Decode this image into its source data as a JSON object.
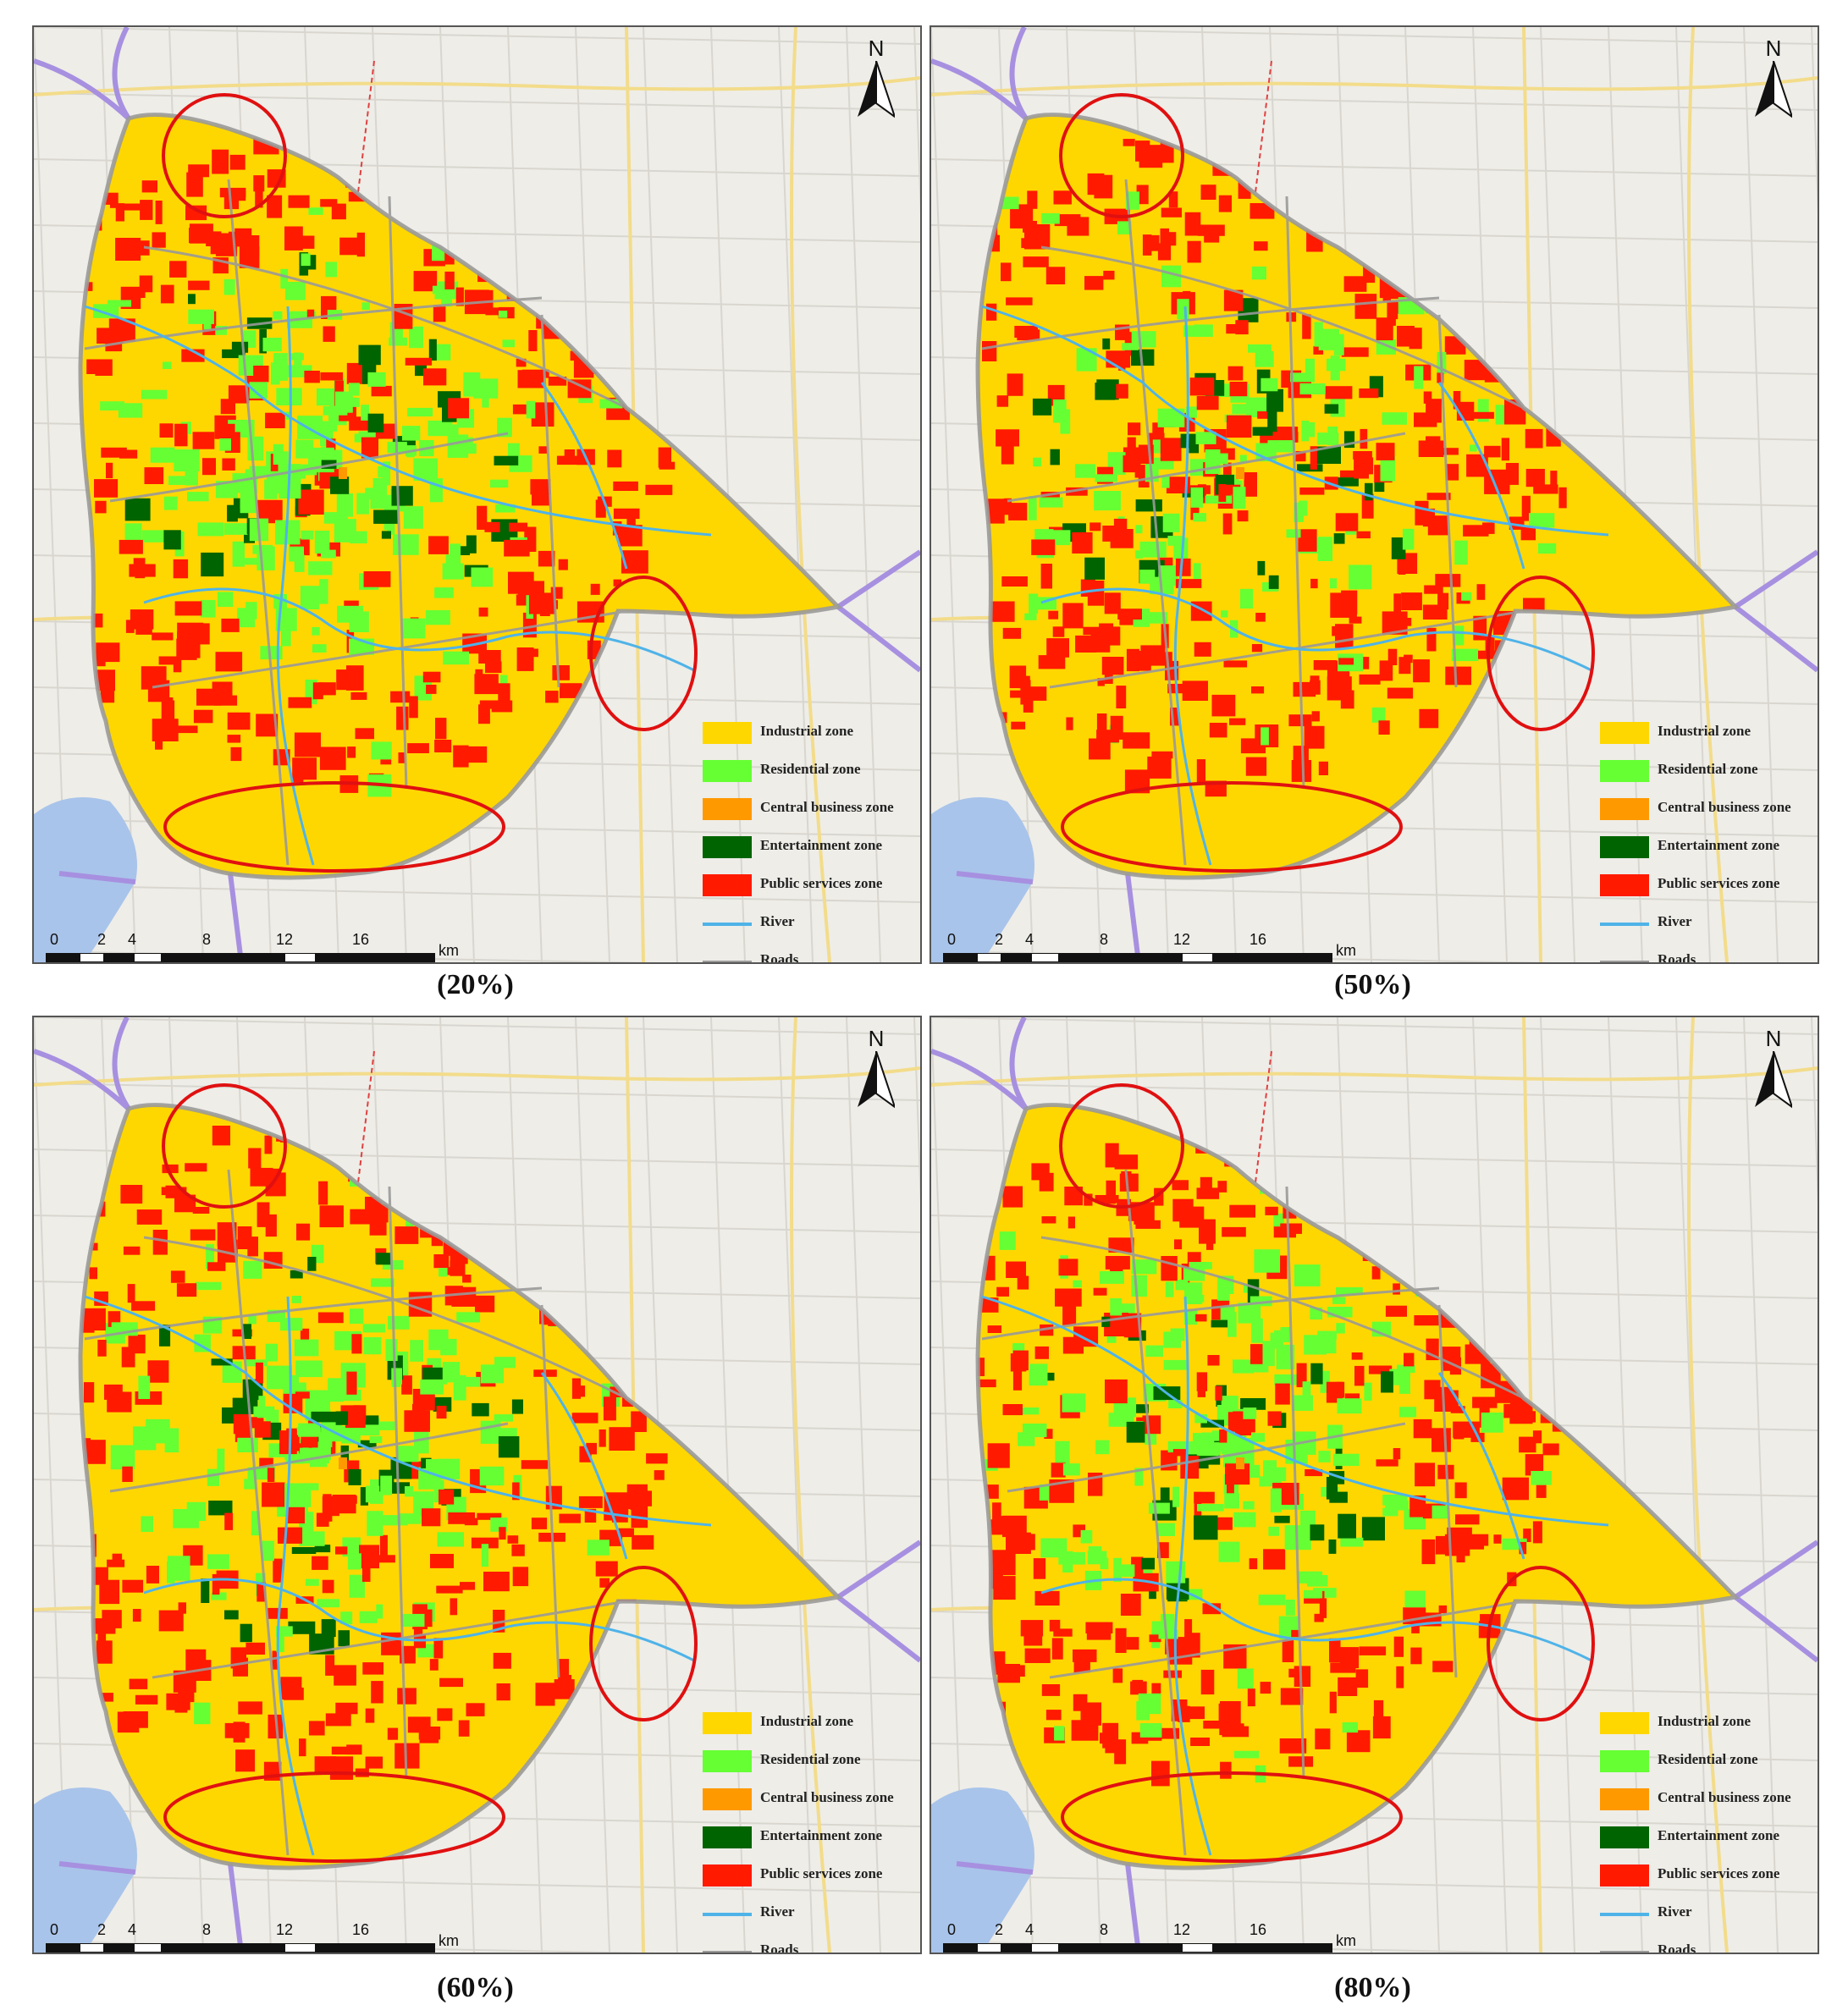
{
  "panels": [
    {
      "caption": "(20%)"
    },
    {
      "caption": "(50%)"
    },
    {
      "caption": "(60%)"
    },
    {
      "caption": "(80%)"
    }
  ],
  "north_label": "N",
  "legend": [
    {
      "label": "Industrial zone",
      "color": "#ffd700",
      "kind": "fill"
    },
    {
      "label": "Residential zone",
      "color": "#66ff33",
      "kind": "fill"
    },
    {
      "label": "Central business zone",
      "color": "#ff9900",
      "kind": "fill"
    },
    {
      "label": "Entertainment zone",
      "color": "#006400",
      "kind": "fill"
    },
    {
      "label": "Public services zone",
      "color": "#ff1a00",
      "kind": "fill"
    },
    {
      "label": "River",
      "color": "#4fb3e8",
      "kind": "line"
    },
    {
      "label": "Roads",
      "color": "#9a9a9a",
      "kind": "line"
    }
  ],
  "scale_bar": {
    "ticks": [
      "0",
      "2",
      "4",
      "8",
      "12",
      "16"
    ],
    "unit": "km"
  },
  "highlight_color": "#e01010"
}
